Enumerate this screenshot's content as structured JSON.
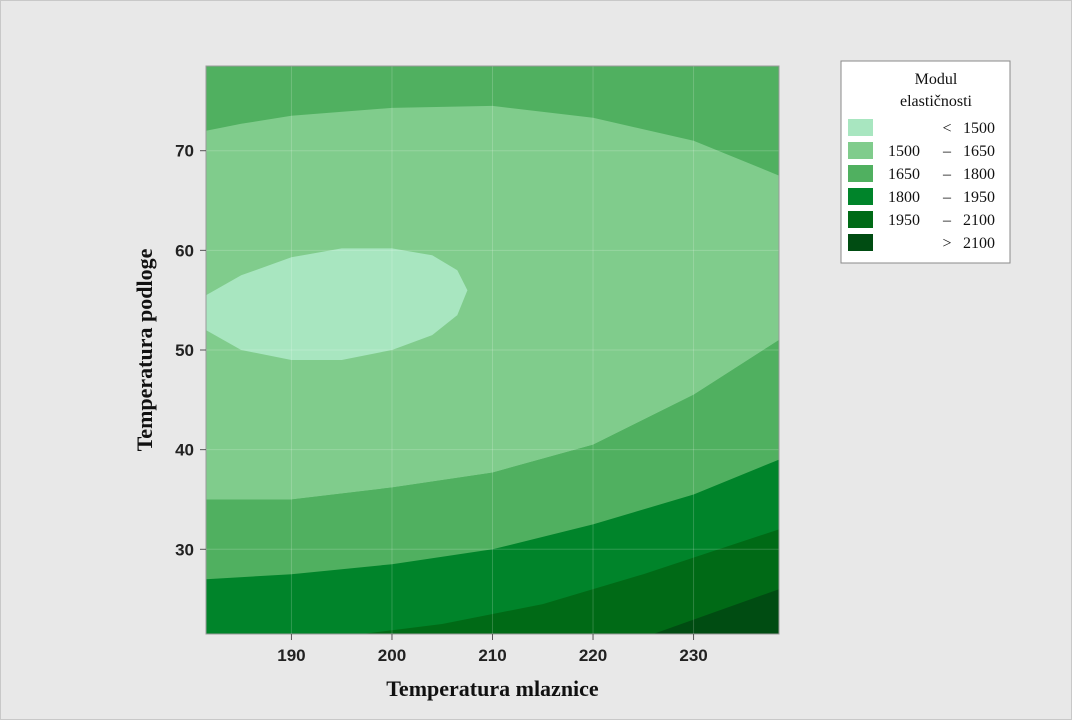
{
  "chart_data": {
    "type": "heatmap",
    "subtype": "contour",
    "xlabel": "Temperatura mlaznice",
    "ylabel": "Temperatura podloge",
    "xlim": [
      181.5,
      238.5
    ],
    "ylim": [
      21.5,
      78.5
    ],
    "x_ticks": [
      190,
      200,
      210,
      220,
      230
    ],
    "y_ticks": [
      30,
      40,
      50,
      60,
      70
    ],
    "legend": {
      "title_line1": "Modul",
      "title_line2": "elastičnosti",
      "position": "right",
      "entries": [
        {
          "low": "<",
          "high": "1500",
          "color": "#a8e6c0"
        },
        {
          "low": "1500",
          "high": "1650",
          "color": "#80cc8c"
        },
        {
          "low": "1650",
          "high": "1800",
          "color": "#50b060"
        },
        {
          "low": "1800",
          "high": "1950",
          "color": "#00842a"
        },
        {
          "low": "1950",
          "high": "2100",
          "color": "#006a16"
        },
        {
          "low": ">",
          "high": "2100",
          "color": "#004c12"
        }
      ]
    },
    "regions": [
      {
        "level": ">2100",
        "color": "#004c12",
        "boundary": [
          [
            226,
            21.5
          ],
          [
            238.5,
            26
          ]
        ]
      },
      {
        "level": "1950-2100",
        "color": "#006a16",
        "boundary": [
          [
            197,
            21.5
          ],
          [
            205,
            22.5
          ],
          [
            215,
            24.5
          ],
          [
            225,
            27.5
          ],
          [
            238.5,
            32
          ]
        ]
      },
      {
        "level": "1800-1950",
        "color": "#00842a",
        "boundary": [
          [
            181.5,
            27
          ],
          [
            190,
            27.5
          ],
          [
            200,
            28.5
          ],
          [
            210,
            30
          ],
          [
            220,
            32.5
          ],
          [
            230,
            35.5
          ],
          [
            238.5,
            39
          ]
        ]
      },
      {
        "level": "1650-1800",
        "color": "#50b060",
        "boundary": [
          [
            181.5,
            35
          ],
          [
            190,
            35
          ],
          [
            200,
            36.2
          ],
          [
            210,
            37.7
          ],
          [
            220,
            40.5
          ],
          [
            230,
            45.5
          ],
          [
            238.5,
            51
          ]
        ]
      },
      {
        "level": "1500-1650",
        "color": "#80cc8c",
        "boundary_upper": [
          [
            181.5,
            72
          ],
          [
            185,
            72.7
          ],
          [
            190,
            73.5
          ],
          [
            200,
            74.3
          ],
          [
            210,
            74.5
          ],
          [
            220,
            73.3
          ],
          [
            230,
            71
          ],
          [
            238.5,
            67.5
          ]
        ]
      },
      {
        "level": "<1500",
        "color": "#a8e6c0",
        "ellipse_points": [
          [
            181.5,
            55.5
          ],
          [
            185,
            57.5
          ],
          [
            190,
            59.3
          ],
          [
            195,
            60.2
          ],
          [
            200,
            60.2
          ],
          [
            204,
            59.5
          ],
          [
            206.5,
            58
          ],
          [
            207.5,
            56
          ],
          [
            206.5,
            53.5
          ],
          [
            204,
            51.5
          ],
          [
            200,
            50
          ],
          [
            195,
            49
          ],
          [
            190,
            49
          ],
          [
            185,
            50
          ],
          [
            181.5,
            52
          ]
        ]
      }
    ]
  }
}
